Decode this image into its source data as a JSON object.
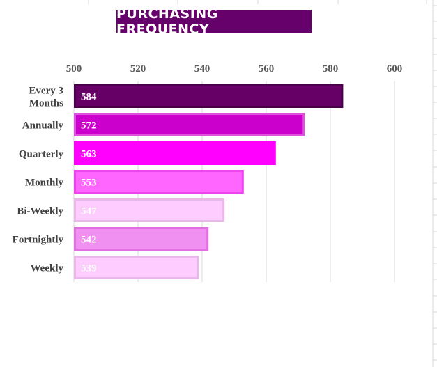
{
  "chart_data": {
    "type": "bar",
    "orientation": "horizontal",
    "title": "PURCHASING FREQUENCY",
    "categories": [
      "Every 3 Months",
      "Annually",
      "Quarterly",
      "Monthly",
      "Bi-Weekly",
      "Fortnightly",
      "Weekly"
    ],
    "category_lines": [
      [
        "Every 3",
        "Months"
      ],
      [
        "Annually"
      ],
      [
        "Quarterly"
      ],
      [
        "Monthly"
      ],
      [
        "Bi-Weekly"
      ],
      [
        "Fortnightly"
      ],
      [
        "Weekly"
      ]
    ],
    "values": [
      584,
      572,
      563,
      553,
      547,
      542,
      539
    ],
    "data_labels": [
      "584",
      "572",
      "563",
      "553",
      "547",
      "542",
      "539"
    ],
    "xlim": [
      500,
      600
    ],
    "ticks": [
      500,
      520,
      540,
      560,
      580,
      600
    ],
    "tick_labels": [
      "500",
      "520",
      "540",
      "560",
      "580",
      "600"
    ],
    "axis_position": "top",
    "grid": true,
    "legend": "none",
    "bar_styles": [
      {
        "fill": "#660066",
        "stroke": "#4a004a",
        "label_color": "#ffffff"
      },
      {
        "fill": "#cc00cc",
        "stroke": "#e050e0",
        "label_color": "#ffffff"
      },
      {
        "fill": "#ff00ff",
        "stroke": "#ff00ff",
        "label_color": "#ffffff"
      },
      {
        "fill": "#ff66ff",
        "stroke": "#ee44ee",
        "label_color": "#ffffff"
      },
      {
        "fill": "#ffccff",
        "stroke": "#e8b8e8",
        "label_color": "#ffffff"
      },
      {
        "fill": "#f090f0",
        "stroke": "#e070e0",
        "label_color": "#ffffff"
      },
      {
        "fill": "#ffccff",
        "stroke": "#e8b8e8",
        "label_color": "#ffffff"
      }
    ],
    "colors": {
      "title_bg": "#66006a",
      "title_text": "#ffffff",
      "gridline": "#d9d9d9",
      "axis_text": "#595959",
      "category_text": "#404040"
    }
  }
}
